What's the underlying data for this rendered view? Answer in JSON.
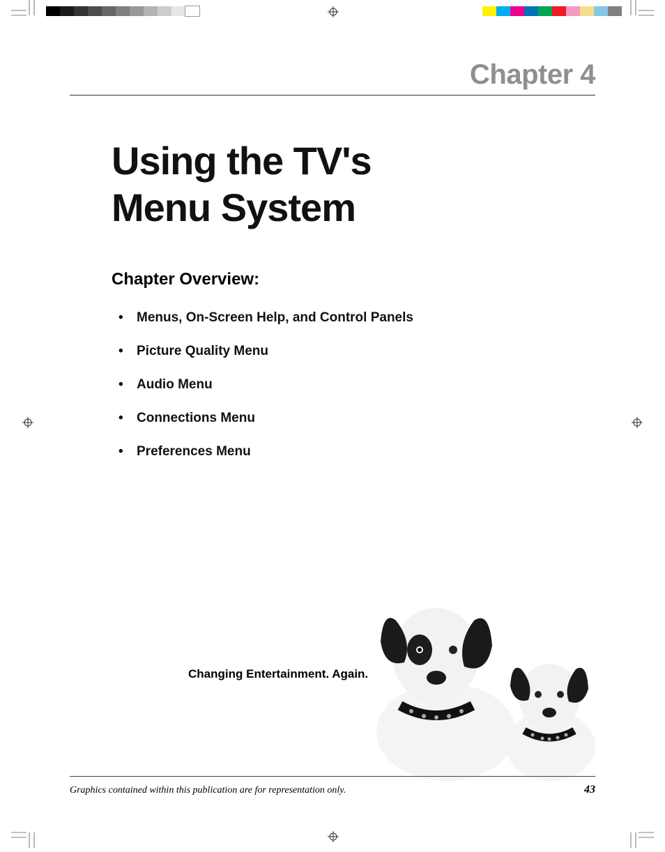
{
  "chapter": {
    "label": "Chapter 4",
    "title_line1": "Using the TV's",
    "title_line2": "Menu System"
  },
  "overview": {
    "heading": "Chapter Overview:",
    "items": [
      "Menus, On-Screen Help, and Control Panels",
      "Picture Quality Menu",
      "Audio Menu",
      "Connections Menu",
      "Preferences Menu"
    ]
  },
  "tagline": "Changing Entertainment. Again.",
  "footer": {
    "note": "Graphics contained within this publication are for representation only.",
    "page_number": "43"
  },
  "print_marks": {
    "gray_swatches": [
      "#000000",
      "#1a1a1a",
      "#333333",
      "#4d4d4d",
      "#666666",
      "#808080",
      "#999999",
      "#b3b3b3",
      "#cccccc",
      "#e6e6e6",
      "#ffffff"
    ],
    "color_swatches": [
      "#808080",
      "#80c7e8",
      "#f8de8b",
      "#f49ac1",
      "#ec1c24",
      "#00a651",
      "#0072bc",
      "#ec008c",
      "#00aeef",
      "#fff200"
    ]
  },
  "colors": {
    "chapter_label": "#8f8f8f",
    "text": "#111111",
    "rule": "#333333",
    "page_bg": "#ffffff"
  },
  "typography": {
    "chapter_label_size": 40,
    "title_size": 56,
    "overview_heading_size": 24,
    "overview_item_size": 19,
    "tagline_size": 17,
    "footer_note_size": 14,
    "page_number_size": 16
  }
}
